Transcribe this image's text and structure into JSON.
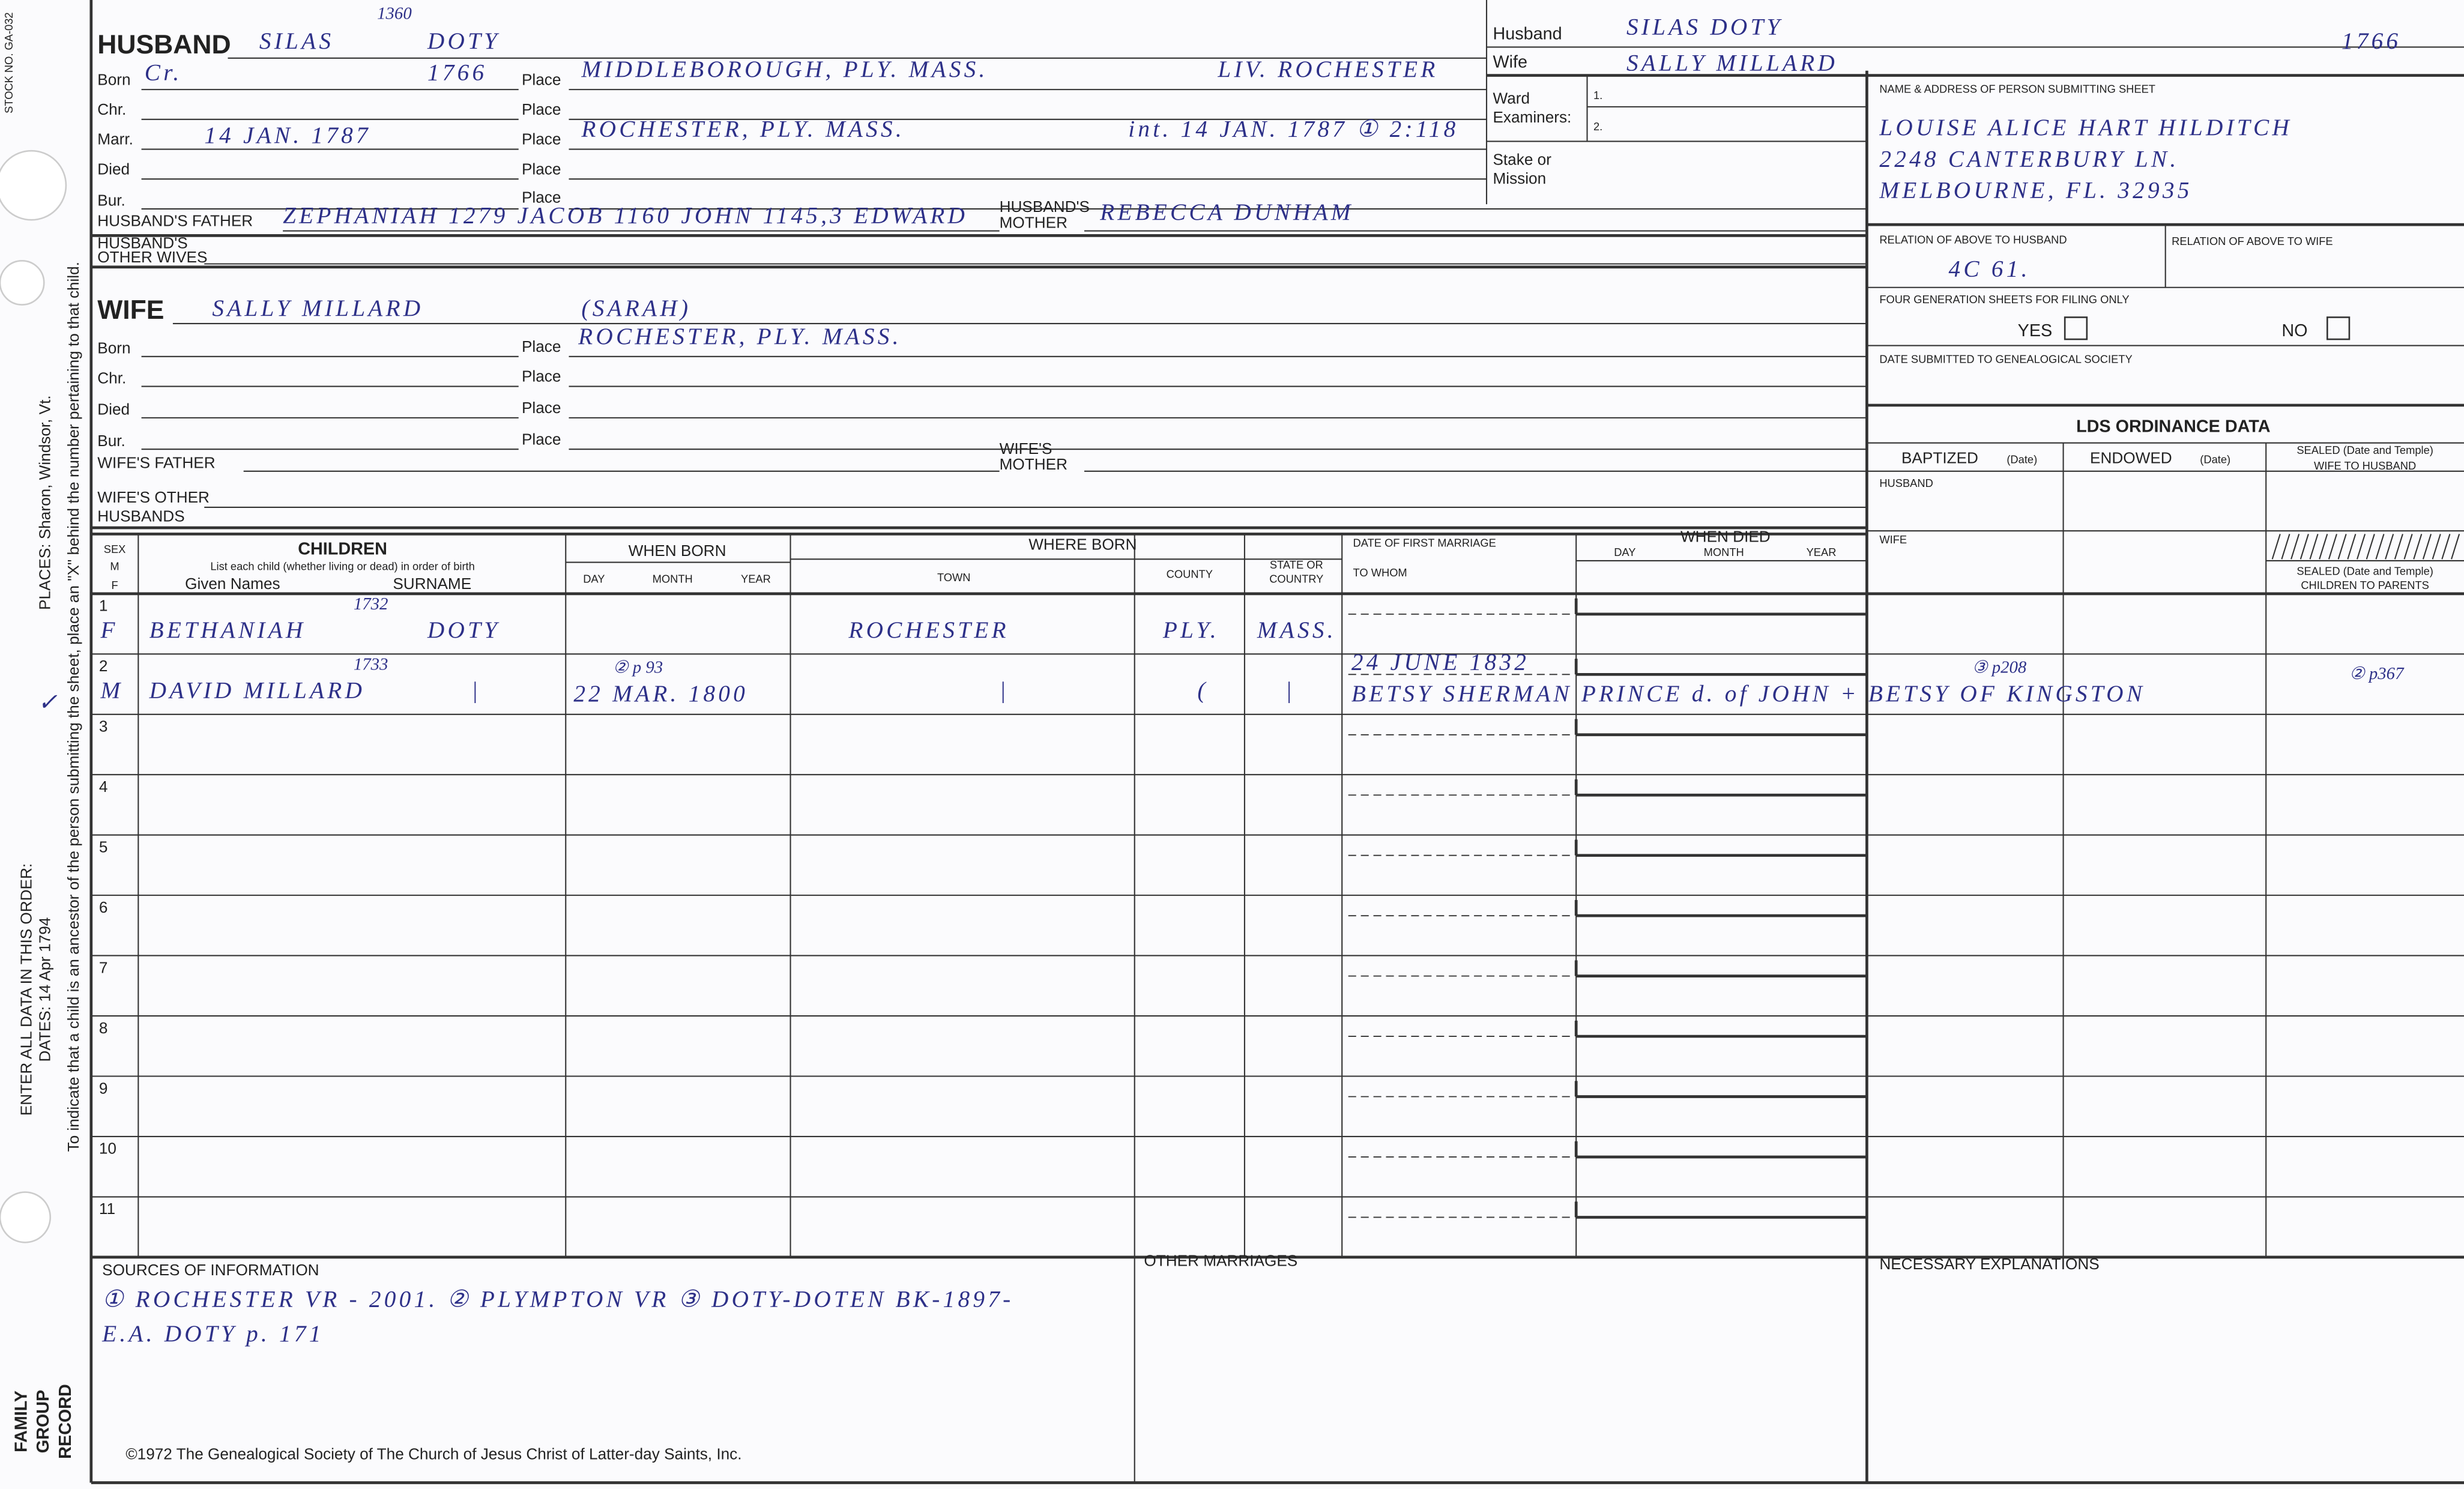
{
  "margin": {
    "stock_no": "STOCK NO. GA-032",
    "places": "PLACES: Sharon, Windsor, Vt.",
    "instructions": "To indicate that a child is an ancestor of the person submitting the sheet, place an \"X\" behind the number pertaining to that child.",
    "order": "ENTER ALL DATA IN THIS ORDER:",
    "dates": "DATES: 14 Apr 1794",
    "record_title": [
      "FAMILY",
      "GROUP",
      "RECORD"
    ],
    "check": "✓"
  },
  "labels": {
    "born": "Born",
    "chr": "Chr.",
    "marr": "Marr.",
    "died": "Died",
    "bur": "Bur.",
    "place": "Place"
  },
  "husband": {
    "label": "HUSBAND",
    "given": "SILAS",
    "number": "1360",
    "surname": "DOTY",
    "born_day": "Cr.",
    "born_year": "1766",
    "born_place": "MIDDLEBOROUGH, PLY. MASS.",
    "born_note": "LIV. ROCHESTER",
    "marr_date": "14 JAN. 1787",
    "marr_place": "ROCHESTER, PLY. MASS.",
    "marr_note": "int. 14 JAN. 1787 ① 2:118",
    "father_label": "HUSBAND'S FATHER",
    "father": "ZEPHANIAH 1279 JACOB 1160 JOHN 1145,3 EDWARD",
    "mother_label": [
      "HUSBAND'S",
      "MOTHER"
    ],
    "mother": "REBECCA DUNHAM",
    "other_wives_label": [
      "HUSBAND'S",
      "OTHER WIVES"
    ]
  },
  "wife": {
    "label": "WIFE",
    "name": "SALLY MILLARD",
    "alt_name": "(SARAH)",
    "born_place": "ROCHESTER, PLY. MASS.",
    "father_label": "WIFE'S FATHER",
    "mother_label": [
      "WIFE'S",
      "MOTHER"
    ],
    "other_husbands_label": [
      "WIFE'S OTHER",
      "HUSBANDS"
    ]
  },
  "summary_box": {
    "husband_label": "Husband",
    "husband": "SILAS DOTY",
    "husband_year": "1766",
    "wife_label": "Wife",
    "wife": "SALLY MILLARD",
    "ward_label": [
      "Ward",
      "Examiners:"
    ],
    "examiner_1": "1.",
    "examiner_2": "2.",
    "stake_label": [
      "Stake or",
      "Mission"
    ]
  },
  "submitter": {
    "header": "NAME & ADDRESS OF PERSON SUBMITTING SHEET",
    "name_lines": [
      "LOUISE ALICE HART HILDITCH",
      "2248 CANTERBURY LN.",
      "MELBOURNE, FL. 32935"
    ],
    "relation_husband_label": "RELATION OF ABOVE TO HUSBAND",
    "relation_husband": "4C 61.",
    "relation_wife_label": "RELATION OF ABOVE TO WIFE",
    "four_gen_label": "FOUR GENERATION SHEETS FOR FILING ONLY",
    "yes": "YES",
    "no": "NO",
    "date_label": "DATE SUBMITTED TO GENEALOGICAL SOCIETY"
  },
  "ordinance": {
    "title": "LDS ORDINANCE DATA",
    "baptized": "BAPTIZED",
    "endowed": "ENDOWED",
    "date": "(Date)",
    "sealed_wife": [
      "SEALED (Date and Temple)",
      "WIFE TO HUSBAND"
    ],
    "husband": "HUSBAND",
    "wife": "WIFE",
    "sealed_children": [
      "SEALED (Date and Temple)",
      "CHILDREN TO PARENTS"
    ]
  },
  "children": {
    "headers": {
      "sex": "SEX",
      "m": "M",
      "f": "F",
      "title": "CHILDREN",
      "instruction": "List each child (whether living or dead) in order of birth",
      "given": "Given Names",
      "surname": "SURNAME",
      "when_born": "WHEN BORN",
      "day": "DAY",
      "month": "MONTH",
      "year": "YEAR",
      "where_born": "WHERE BORN",
      "town": "TOWN",
      "county": "COUNTY",
      "state": [
        "STATE OR",
        "COUNTRY"
      ],
      "first_marriage": "DATE OF FIRST MARRIAGE",
      "to_whom": "TO WHOM",
      "when_died": "WHEN DIED"
    },
    "rows": [
      {
        "number": 1,
        "sex": "F",
        "given_names": "BETHANIAH",
        "birth_note": "1732",
        "surname": "DOTY",
        "town": "ROCHESTER",
        "county": "PLY.",
        "state": "MASS."
      },
      {
        "number": 2,
        "sex": "M",
        "given_names": "DAVID MILLARD",
        "birth_note": "1733",
        "surname": "|",
        "born_note": "② p 93",
        "born": "22 MAR. 1800",
        "town": "|",
        "county": "(",
        "state": "|",
        "marriage_date": "24 JUNE 1832",
        "spouse": "BETSY SHERMAN PRINCE d. of JOHN + BETSY OF KINGSTON",
        "endowed_note": "③ p208",
        "sealed_note": "② p367"
      },
      {
        "number": 3
      },
      {
        "number": 4
      },
      {
        "number": 5
      },
      {
        "number": 6
      },
      {
        "number": 7
      },
      {
        "number": 8
      },
      {
        "number": 9
      },
      {
        "number": 10
      },
      {
        "number": 11
      }
    ]
  },
  "sources": {
    "label": "SOURCES OF INFORMATION",
    "lines": [
      "① ROCHESTER VR - 2001. ② PLYMPTON VR ③ DOTY-DOTEN BK-1897-",
      "E.A. DOTY p. 171"
    ]
  },
  "other_marriages": "OTHER MARRIAGES",
  "explanations": "NECESSARY EXPLANATIONS",
  "copyright": "©1972 The Genealogical Society of The Church of Jesus Christ of Latter-day Saints, Inc."
}
